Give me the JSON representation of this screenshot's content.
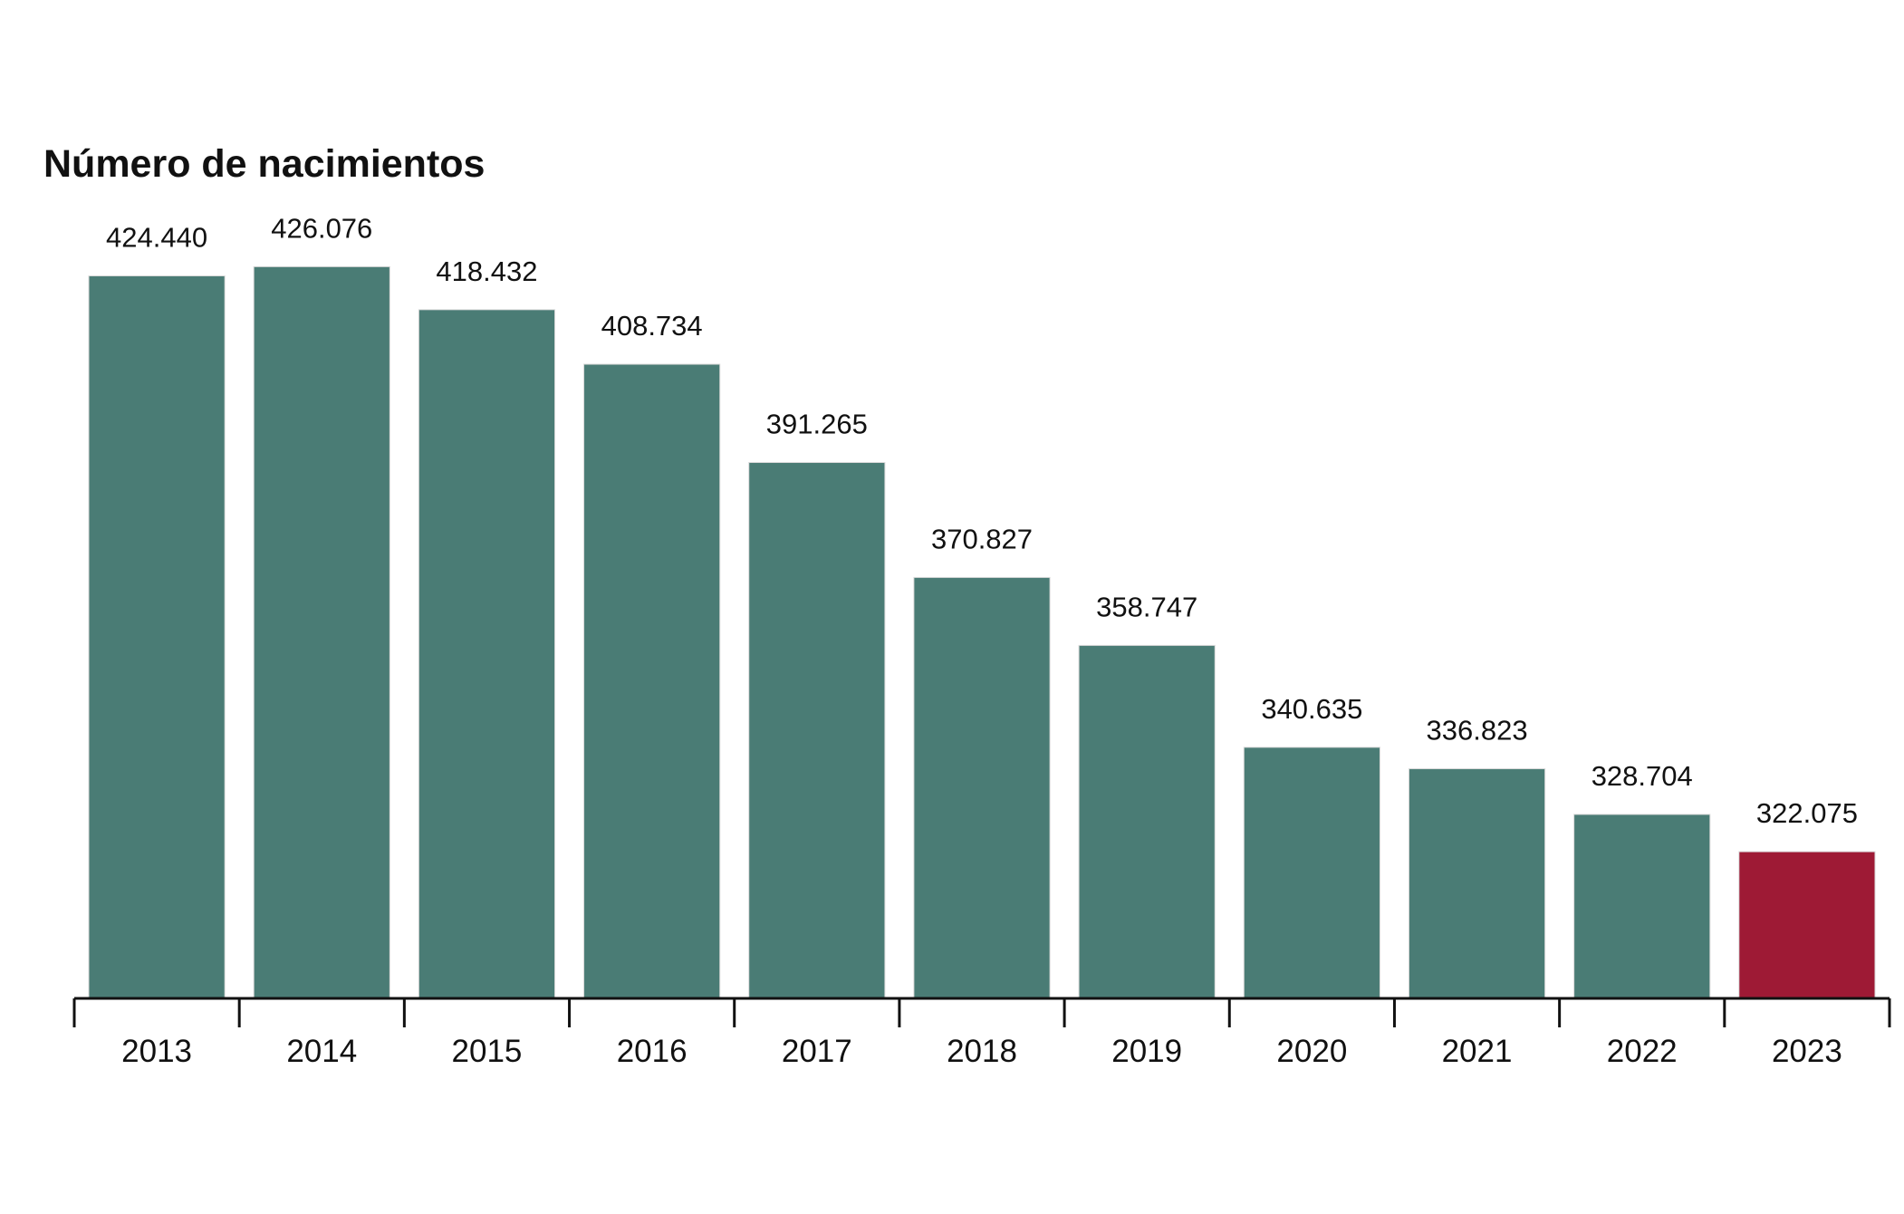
{
  "chart_data": {
    "type": "bar",
    "title": "Número de nacimientos",
    "xlabel": "",
    "ylabel": "",
    "categories": [
      "2013",
      "2014",
      "2015",
      "2016",
      "2017",
      "2018",
      "2019",
      "2020",
      "2021",
      "2022",
      "2023"
    ],
    "values": [
      424440,
      426076,
      418432,
      408734,
      391265,
      370827,
      358747,
      340635,
      336823,
      328704,
      322075
    ],
    "value_labels": [
      "424.440",
      "426.076",
      "418.432",
      "408.734",
      "391.265",
      "370.827",
      "358.747",
      "340.635",
      "336.823",
      "328.704",
      "322.075"
    ],
    "ylim": [
      296000,
      430000
    ],
    "highlight_category": "2023",
    "colors": {
      "bar": "#4a7c75",
      "highlight": "#9e1a35",
      "axis": "#111111",
      "text": "#111111"
    },
    "grid": false,
    "legend": "none",
    "y_axis_visible": false
  }
}
